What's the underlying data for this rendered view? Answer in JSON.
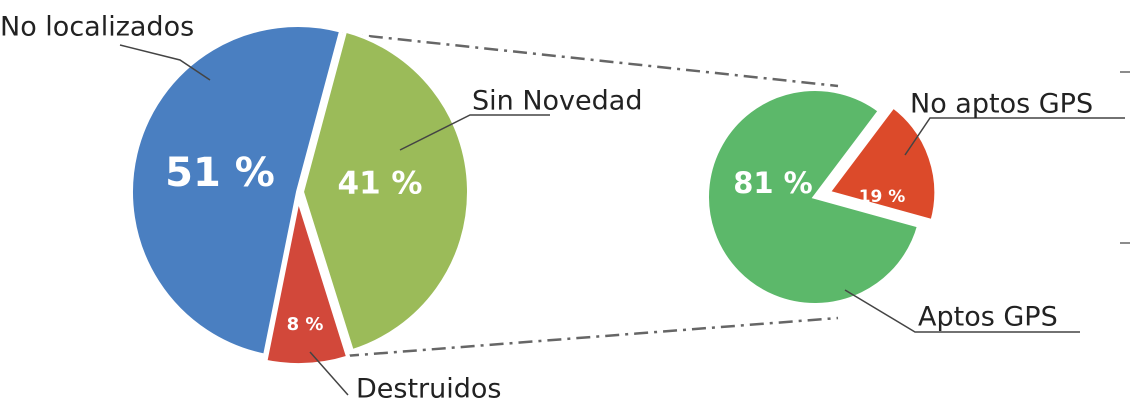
{
  "chart_data": [
    {
      "type": "pie",
      "categories": [
        "No localizados",
        "Sin Novedad",
        "Destruidos"
      ],
      "values": [
        51,
        41,
        8
      ],
      "value_labels": [
        "51 %",
        "41 %",
        "8 %"
      ],
      "colors": [
        "#4a7fc1",
        "#9bbb59",
        "#d2483a"
      ]
    },
    {
      "type": "pie",
      "categories": [
        "Aptos GPS",
        "No aptos GPS"
      ],
      "values": [
        81,
        19
      ],
      "value_labels": [
        "81 %",
        "19 %"
      ],
      "colors": [
        "#5cb86a",
        "#dc4a2a"
      ]
    }
  ]
}
